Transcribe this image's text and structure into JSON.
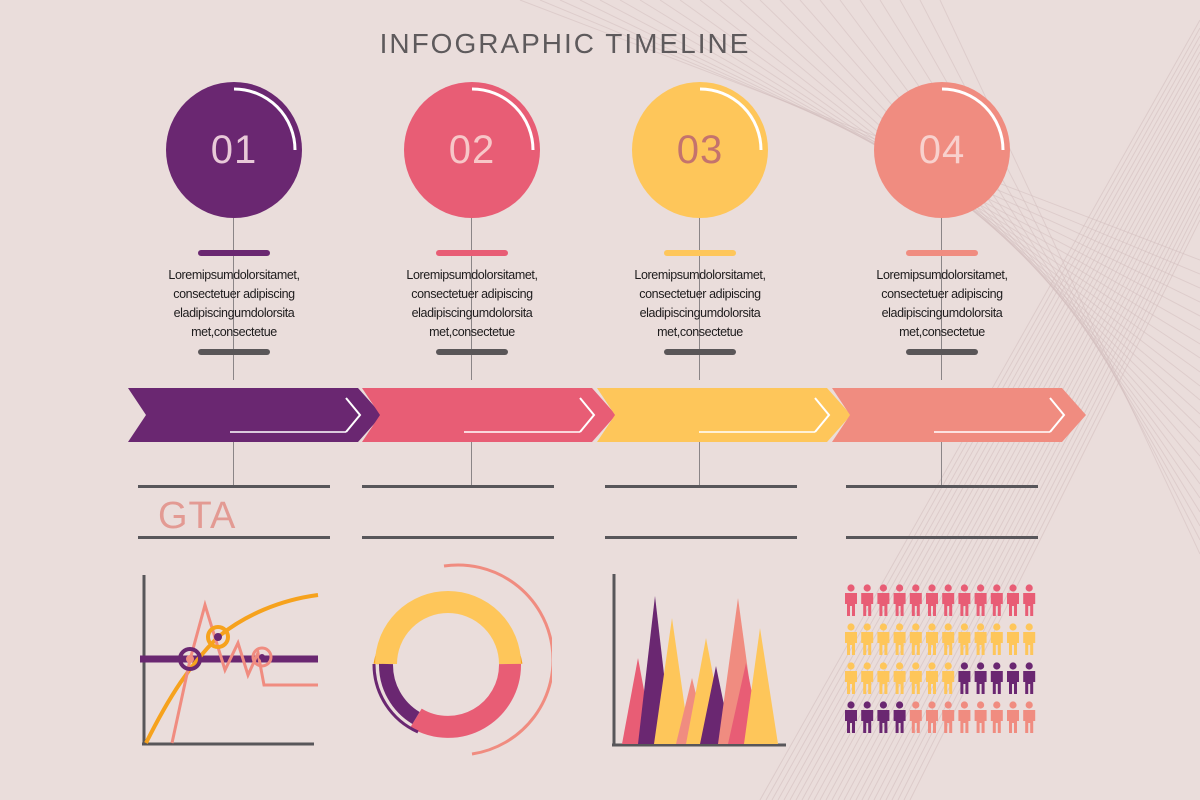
{
  "title": "INFOGRAPHIC TIMELINE",
  "colors": {
    "background": "#eadddb",
    "purple": "#6a2771",
    "pink": "#e85d75",
    "yellow": "#fec65a",
    "salmon": "#f08c80",
    "orange": "#f6a21d",
    "text_dark": "#1d1b1c",
    "rule": "#58565a"
  },
  "steps": [
    {
      "number": "01",
      "color": "#6a2771",
      "number_color": "#e8c9d8",
      "desc": [
        "Loremipsumdolorsitamet,",
        "consectetuer adipiscing",
        "eladipiscingumdolorsita",
        "met,consectetue"
      ],
      "label": "GTA"
    },
    {
      "number": "02",
      "color": "#e85d75",
      "number_color": "#f7c7c8",
      "desc": [
        "Loremipsumdolorsitamet,",
        "consectetuer adipiscing",
        "eladipiscingumdolorsita",
        "met,consectetue"
      ],
      "label": ""
    },
    {
      "number": "03",
      "color": "#fec65a",
      "number_color": "#c4736d",
      "desc": [
        "Loremipsumdolorsitamet,",
        "consectetuer adipiscing",
        "eladipiscingumdolorsita",
        "met,consectetue"
      ],
      "label": ""
    },
    {
      "number": "04",
      "color": "#f08c80",
      "number_color": "#f8d1cd",
      "desc": [
        "Loremipsumdolorsitamet,",
        "consectetuer adipiscing",
        "eladipiscingumdolorsita",
        "met,consectetue"
      ],
      "label": ""
    }
  ],
  "people_grid": {
    "rows": [
      [
        "pink",
        "pink",
        "pink",
        "pink",
        "pink",
        "pink",
        "pink",
        "pink",
        "pink",
        "pink",
        "pink",
        "pink"
      ],
      [
        "yellow",
        "yellow",
        "yellow",
        "yellow",
        "yellow",
        "yellow",
        "yellow",
        "yellow",
        "yellow",
        "yellow",
        "yellow",
        "yellow"
      ],
      [
        "yellow",
        "yellow",
        "yellow",
        "yellow",
        "yellow",
        "yellow",
        "yellow",
        "purple",
        "purple",
        "purple",
        "purple",
        "purple"
      ],
      [
        "purple",
        "purple",
        "purple",
        "purple",
        "salmon",
        "salmon",
        "salmon",
        "salmon",
        "salmon",
        "salmon",
        "salmon",
        "salmon"
      ]
    ]
  },
  "icons": [
    "person-icon",
    "chevron-arrow-icon"
  ]
}
